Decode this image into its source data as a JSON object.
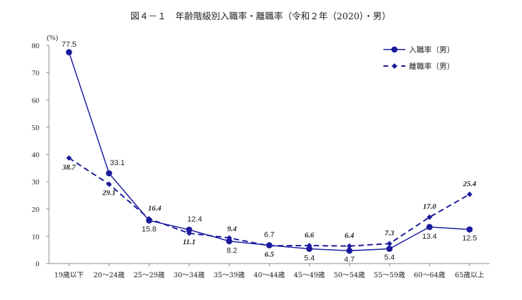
{
  "chart_data": {
    "type": "line",
    "title": "図４－１　年齢階級別入職率・離職率（令和２年（2020）・男）",
    "xlabel": "",
    "ylabel": "(%)",
    "ylim": [
      0,
      80
    ],
    "yticks": [
      0,
      10,
      20,
      30,
      40,
      50,
      60,
      70,
      80
    ],
    "grid": false,
    "legend_position": "top-right",
    "categories": [
      "19歳以下",
      "20～24歳",
      "25～29歳",
      "30～34歳",
      "35～39歳",
      "40～44歳",
      "45～49歳",
      "50～54歳",
      "55～59歳",
      "60～64歳",
      "65歳以上"
    ],
    "series": [
      {
        "name": "入職率（男）",
        "style": "solid-circle",
        "color": "#1a1a9e",
        "values": [
          77.5,
          33.1,
          15.8,
          12.4,
          8.2,
          6.7,
          5.4,
          4.7,
          5.4,
          13.4,
          12.5
        ]
      },
      {
        "name": "離職率（男）",
        "style": "dashed-diamond",
        "color": "#1a1a9e",
        "values": [
          38.7,
          29.1,
          16.4,
          11.1,
          9.4,
          6.5,
          6.6,
          6.4,
          7.3,
          17.0,
          25.4
        ]
      }
    ]
  }
}
